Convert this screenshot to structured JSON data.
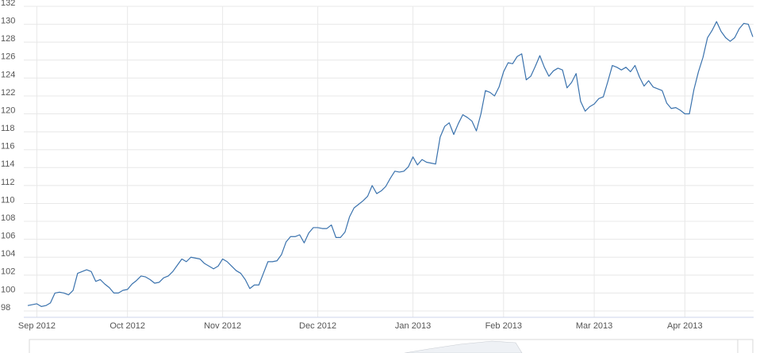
{
  "chart_data": {
    "type": "line",
    "color": "#3a72ad",
    "grid": true,
    "ylim": [
      98,
      132
    ],
    "yticks": [
      98,
      100,
      102,
      104,
      106,
      108,
      110,
      112,
      114,
      116,
      118,
      120,
      122,
      124,
      126,
      128,
      130,
      132
    ],
    "categories": [
      null,
      null,
      "Sep 2012",
      null,
      null,
      null,
      null,
      null,
      null,
      null,
      null,
      null,
      null,
      null,
      null,
      null,
      null,
      null,
      null,
      null,
      null,
      null,
      "Oct 2012",
      null,
      null,
      null,
      null,
      null,
      null,
      null,
      null,
      null,
      null,
      null,
      null,
      null,
      null,
      null,
      null,
      null,
      null,
      null,
      null,
      "Nov 2012",
      null,
      null,
      null,
      null,
      null,
      null,
      null,
      null,
      null,
      null,
      null,
      null,
      null,
      null,
      null,
      null,
      null,
      null,
      null,
      null,
      "Dec 2012",
      null,
      null,
      null,
      null,
      null,
      null,
      null,
      null,
      null,
      null,
      null,
      null,
      null,
      null,
      null,
      null,
      null,
      null,
      null,
      null,
      "Jan 2013",
      null,
      null,
      null,
      null,
      null,
      null,
      null,
      null,
      null,
      null,
      null,
      null,
      null,
      null,
      null,
      null,
      null,
      null,
      null,
      "Feb 2013",
      null,
      null,
      null,
      null,
      null,
      null,
      null,
      null,
      null,
      null,
      null,
      null,
      null,
      null,
      null,
      null,
      null,
      null,
      null,
      "Mar 2013",
      null,
      null,
      null,
      null,
      null,
      null,
      null,
      null,
      null,
      null,
      null,
      null,
      null,
      null,
      null,
      null,
      null,
      null,
      null,
      "Apr 2013",
      null,
      null,
      null,
      null,
      null,
      null,
      null,
      null,
      null,
      null,
      null,
      null,
      null,
      null,
      null
    ],
    "values": [
      98.6,
      98.7,
      98.8,
      98.5,
      98.6,
      98.9,
      100.0,
      100.1,
      100.0,
      99.8,
      100.3,
      102.2,
      102.4,
      102.6,
      102.4,
      101.3,
      101.5,
      101.0,
      100.6,
      100.0,
      100.0,
      100.3,
      100.4,
      101.0,
      101.4,
      101.9,
      101.8,
      101.5,
      101.1,
      101.2,
      101.7,
      101.9,
      102.4,
      103.1,
      103.8,
      103.5,
      104.0,
      103.9,
      103.8,
      103.3,
      103.0,
      102.7,
      103.0,
      103.8,
      103.5,
      103.0,
      102.5,
      102.2,
      101.5,
      100.5,
      100.9,
      100.9,
      102.2,
      103.5,
      103.5,
      103.6,
      104.3,
      105.7,
      106.3,
      106.3,
      106.5,
      105.6,
      106.7,
      107.3,
      107.3,
      107.2,
      107.2,
      107.6,
      106.2,
      106.2,
      106.8,
      108.5,
      109.5,
      109.9,
      110.3,
      110.8,
      112.0,
      111.1,
      111.4,
      111.9,
      112.8,
      113.6,
      113.5,
      113.6,
      114.1,
      115.2,
      114.3,
      114.9,
      114.6,
      114.5,
      114.4,
      117.4,
      118.6,
      119.0,
      117.7,
      118.9,
      119.9,
      119.6,
      119.2,
      118.1,
      120.0,
      122.6,
      122.4,
      122.0,
      123.0,
      124.7,
      125.7,
      125.6,
      126.4,
      126.7,
      123.8,
      124.2,
      125.3,
      126.5,
      125.2,
      124.2,
      124.8,
      125.1,
      124.9,
      122.9,
      123.5,
      124.5,
      121.4,
      120.3,
      120.8,
      121.1,
      121.7,
      121.9,
      123.6,
      125.4,
      125.2,
      124.9,
      125.2,
      124.7,
      125.4,
      124.1,
      123.1,
      123.7,
      123.0,
      122.8,
      122.6,
      121.2,
      120.6,
      120.7,
      120.4,
      120.0,
      120.0,
      122.7,
      124.7,
      126.3,
      128.5,
      129.3,
      130.3,
      129.2,
      128.5,
      128.1,
      128.5,
      129.5,
      130.1,
      130.0,
      128.6
    ]
  }
}
